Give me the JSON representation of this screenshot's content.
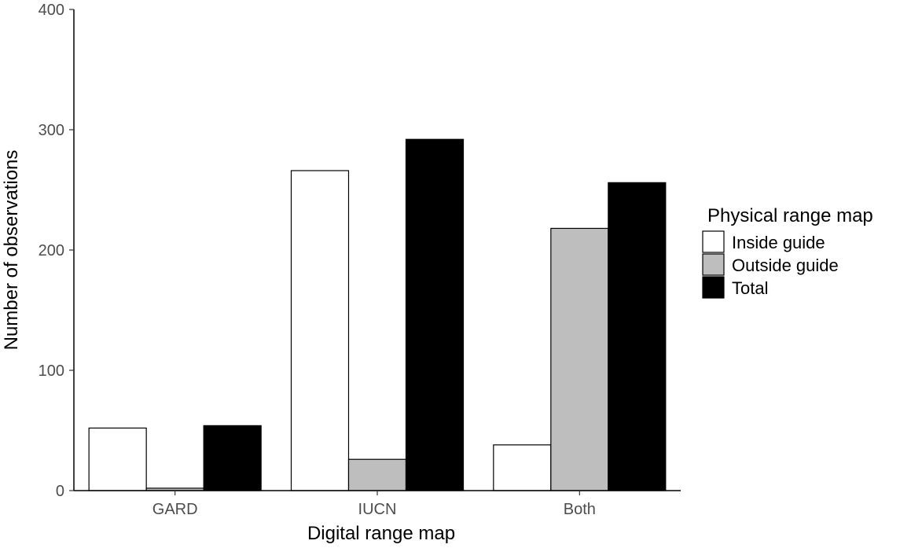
{
  "chart_data": {
    "type": "bar",
    "xlabel": "Digital range map",
    "ylabel": "Number of observations",
    "ylim": [
      0,
      400
    ],
    "yticks": [
      0,
      100,
      200,
      300,
      400
    ],
    "categories": [
      "GARD",
      "IUCN",
      "Both"
    ],
    "legend_title": "Physical range map",
    "legend_position": "right",
    "grid": false,
    "series": [
      {
        "name": "Inside guide",
        "color": "#ffffff",
        "values": [
          52,
          266,
          38
        ]
      },
      {
        "name": "Outside guide",
        "color": "#bebebe",
        "values": [
          2,
          26,
          218
        ]
      },
      {
        "name": "Total",
        "color": "#000000",
        "values": [
          54,
          292,
          256
        ]
      }
    ]
  }
}
